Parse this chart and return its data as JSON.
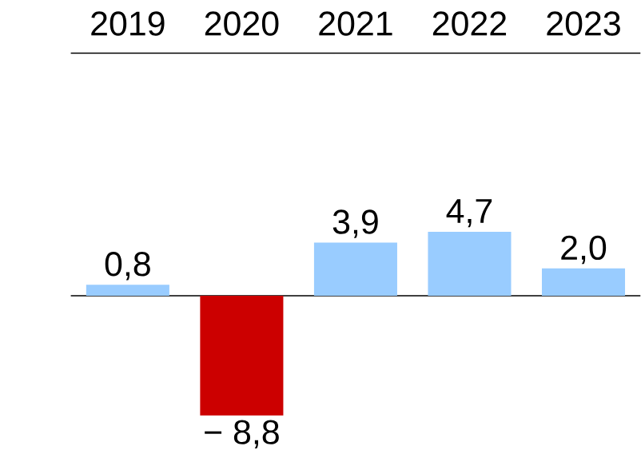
{
  "chart_data": {
    "type": "bar",
    "categories": [
      "2019",
      "2020",
      "2021",
      "2022",
      "2023"
    ],
    "values": [
      0.8,
      -8.8,
      3.9,
      4.7,
      2.0
    ],
    "colors": [
      "#99ccff",
      "#cc0000",
      "#99ccff",
      "#99ccff",
      "#99ccff"
    ],
    "value_labels": [
      "0,8",
      "− 8,8",
      "3,9",
      "4,7",
      "2,0"
    ]
  }
}
